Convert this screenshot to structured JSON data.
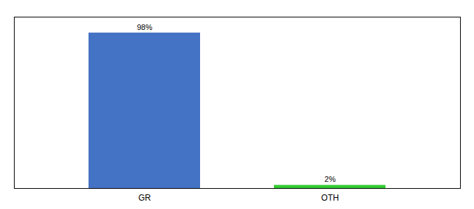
{
  "chart_data": {
    "type": "bar",
    "categories": [
      "GR",
      "OTH"
    ],
    "values": [
      98,
      2
    ],
    "value_labels": [
      "98%",
      "2%"
    ],
    "colors": [
      "#4472C4",
      "#33CC33"
    ],
    "ylim": [
      0,
      108
    ],
    "data_labels": true,
    "tick_labels": "x",
    "grid": false
  }
}
